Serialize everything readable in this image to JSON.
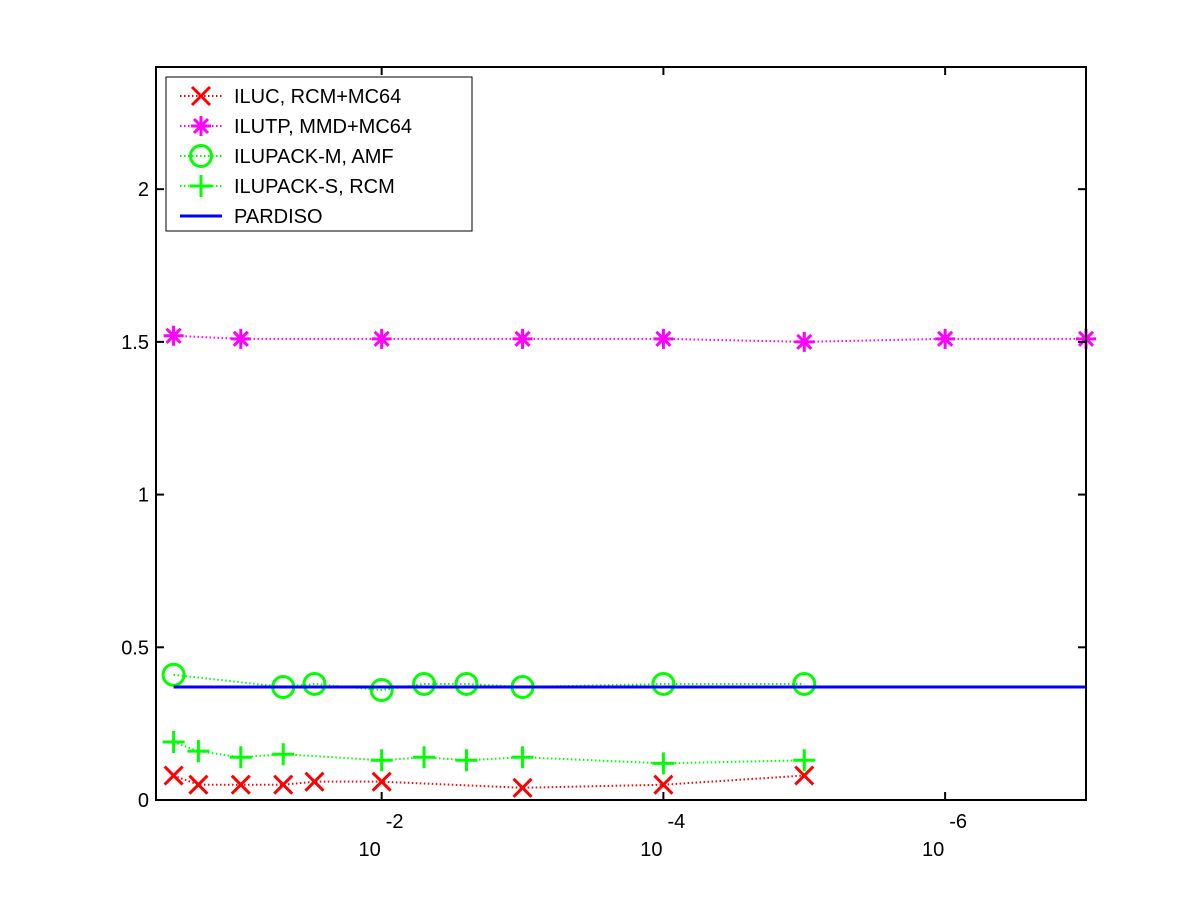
{
  "chart_data": {
    "type": "line",
    "title": "",
    "xlabel": "",
    "ylabel": "",
    "x_scale": "log-reversed",
    "xlim": [
      0.4,
      1e-07
    ],
    "ylim": [
      0,
      2.4
    ],
    "grid": false,
    "legend_placement": "top-left",
    "yticks": [
      {
        "value": 0,
        "label": "0"
      },
      {
        "value": 0.5,
        "label": "0.5"
      },
      {
        "value": 1,
        "label": "1"
      },
      {
        "value": 1.5,
        "label": "1.5"
      },
      {
        "value": 2,
        "label": "2"
      }
    ],
    "xticks": [
      {
        "value": 0.01,
        "base": "10",
        "exponent": "-2"
      },
      {
        "value": 0.0001,
        "base": "10",
        "exponent": "-4"
      },
      {
        "value": 1e-06,
        "base": "10",
        "exponent": "-6"
      }
    ],
    "series": [
      {
        "name": "ILUC, RCM+MC64",
        "color": "#ff0000",
        "marker": "x",
        "line": "dotted",
        "x": [
          0.3,
          0.2,
          0.1,
          0.05,
          0.03,
          0.01,
          0.001,
          0.0001,
          1e-05
        ],
        "y": [
          0.08,
          0.05,
          0.05,
          0.05,
          0.06,
          0.06,
          0.04,
          0.05,
          0.08
        ]
      },
      {
        "name": "ILUTP, MMD+MC64",
        "color": "#ff00ff",
        "marker": "asterisk",
        "line": "dotted",
        "x": [
          0.3,
          0.1,
          0.01,
          0.001,
          0.0001,
          1e-05,
          1e-06,
          1e-07
        ],
        "y": [
          1.52,
          1.51,
          1.51,
          1.51,
          1.51,
          1.5,
          1.51,
          1.51
        ]
      },
      {
        "name": "ILUPACK-M, AMF",
        "color": "#00ff00",
        "marker": "circle",
        "line": "dotted",
        "x": [
          0.3,
          0.05,
          0.03,
          0.01,
          0.005,
          0.0025,
          0.001,
          0.0001,
          1e-05
        ],
        "y": [
          0.41,
          0.37,
          0.38,
          0.36,
          0.38,
          0.38,
          0.37,
          0.38,
          0.38
        ]
      },
      {
        "name": "ILUPACK-S, RCM",
        "color": "#00ff00",
        "marker": "plus",
        "line": "dotted",
        "x": [
          0.3,
          0.2,
          0.1,
          0.05,
          0.01,
          0.005,
          0.0025,
          0.001,
          0.0001,
          1e-05
        ],
        "y": [
          0.19,
          0.16,
          0.14,
          0.15,
          0.13,
          0.14,
          0.13,
          0.14,
          0.12,
          0.13
        ]
      },
      {
        "name": "PARDISO",
        "color": "#0000ff",
        "marker": "none",
        "line": "solid",
        "x": [
          0.3,
          1e-07
        ],
        "y": [
          0.37,
          0.37
        ]
      }
    ]
  }
}
